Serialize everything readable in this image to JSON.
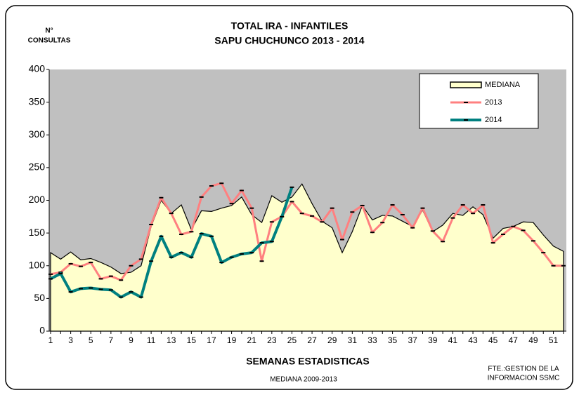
{
  "chart_data": {
    "type": "line",
    "title": "TOTAL IRA -  INFANTILES",
    "subtitle": "SAPU CHUCHUNCO   2013 - 2014",
    "y_label": [
      "N°",
      "CONSULTAS"
    ],
    "x_label": "SEMANAS ESTADISTICAS",
    "note": "MEDIANA 2009-2013",
    "source": [
      "FTE.:GESTION DE LA",
      "INFORMACION  SSMC"
    ],
    "categories": [
      1,
      null,
      3,
      null,
      5,
      null,
      7,
      null,
      9,
      null,
      11,
      null,
      13,
      null,
      15,
      null,
      17,
      null,
      19,
      null,
      21,
      null,
      23,
      null,
      25,
      null,
      27,
      null,
      29,
      null,
      31,
      null,
      33,
      null,
      35,
      null,
      37,
      null,
      39,
      null,
      41,
      null,
      43,
      null,
      45,
      null,
      47,
      null,
      49,
      null,
      51,
      null
    ],
    "ylim": [
      0,
      400
    ],
    "yticks": [
      0,
      50,
      100,
      150,
      200,
      250,
      300,
      350,
      400
    ],
    "legend": "top-right",
    "series": [
      {
        "name": "MEDIANA",
        "kind": "area",
        "color": "#ffffcc",
        "values": [
          120,
          110,
          121,
          109,
          111,
          105,
          98,
          88,
          90,
          100,
          160,
          200,
          180,
          193,
          155,
          184,
          183,
          188,
          192,
          205,
          178,
          166,
          207,
          197,
          205,
          225,
          195,
          168,
          158,
          120,
          152,
          192,
          170,
          177,
          176,
          168,
          160,
          185,
          152,
          162,
          180,
          177,
          190,
          178,
          142,
          157,
          160,
          167,
          166,
          147,
          130,
          122
        ]
      },
      {
        "name": "2013",
        "kind": "line",
        "color": "#ff8080",
        "values": [
          87,
          90,
          103,
          99,
          105,
          80,
          84,
          78,
          100,
          110,
          163,
          204,
          180,
          148,
          152,
          205,
          222,
          226,
          195,
          215,
          188,
          107,
          167,
          175,
          198,
          180,
          176,
          167,
          188,
          140,
          182,
          192,
          151,
          166,
          193,
          178,
          158,
          188,
          153,
          137,
          173,
          193,
          180,
          193,
          135,
          148,
          160,
          154,
          138,
          120,
          100,
          100
        ]
      },
      {
        "name": "2014",
        "kind": "line",
        "color": "#008080",
        "values": [
          80,
          88,
          60,
          65,
          66,
          64,
          63,
          52,
          60,
          52,
          107,
          145,
          113,
          120,
          113,
          149,
          145,
          105,
          113,
          118,
          120,
          135,
          137,
          175,
          220,
          null,
          null,
          null,
          null,
          null,
          null,
          null,
          null,
          null,
          null,
          null,
          null,
          null,
          null,
          null,
          null,
          null,
          null,
          null,
          null,
          null,
          null,
          null,
          null,
          null,
          null,
          null
        ]
      }
    ]
  }
}
